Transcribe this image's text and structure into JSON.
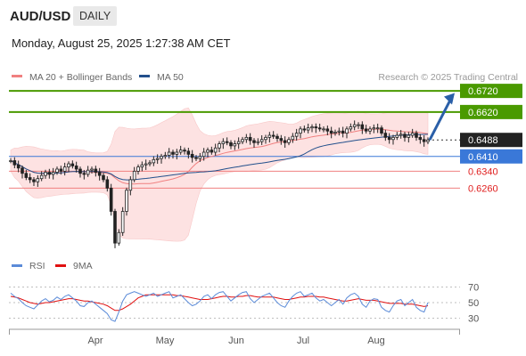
{
  "header": {
    "symbol": "AUD/USD",
    "period": "DAILY"
  },
  "datetime": "Monday, August 25, 2025 1:27:38 AM CET",
  "colors": {
    "green_level": "#4a9a00",
    "red_level": "#f08080",
    "blue_level": "#3a78d8",
    "bollinger_fill": "#fde2e2",
    "ma20": "#f08080",
    "ma50": "#22508c",
    "candle_up": "#222222",
    "candle_down": "#222222",
    "rsi": "#5b8bd8",
    "rsi_ma": "#e01010",
    "arrow": "#2a5fa8",
    "current_price_bg": "#222222"
  },
  "chart_data": [
    {
      "type": "candlestick",
      "legend": [
        {
          "name": "MA 20 + Bollinger Bands",
          "color": "#f08080"
        },
        {
          "name": "MA 50",
          "color": "#22508c"
        }
      ],
      "source": "Research © 2025 Trading Central",
      "x_labels": [
        "Apr",
        "May",
        "Jun",
        "Jul",
        "Aug"
      ],
      "ylim": [
        0.595,
        0.675
      ],
      "current_price": 0.6488,
      "levels": [
        {
          "value": 0.672,
          "label": "0.6720",
          "kind": "resistance"
        },
        {
          "value": 0.662,
          "label": "0.6620",
          "kind": "resistance"
        },
        {
          "value": 0.641,
          "label": "0.6410",
          "kind": "pivot"
        },
        {
          "value": 0.634,
          "label": "0.6340",
          "kind": "support"
        },
        {
          "value": 0.626,
          "label": "0.6260",
          "kind": "support"
        }
      ],
      "forecast_direction": "up",
      "close_series": [
        0.639,
        0.637,
        0.6355,
        0.633,
        0.631,
        0.63,
        0.629,
        0.6305,
        0.632,
        0.6335,
        0.6325,
        0.6335,
        0.635,
        0.634,
        0.636,
        0.6375,
        0.6365,
        0.635,
        0.633,
        0.6325,
        0.6345,
        0.635,
        0.6335,
        0.632,
        0.63,
        0.626,
        0.615,
        0.6,
        0.605,
        0.615,
        0.625,
        0.63,
        0.634,
        0.636,
        0.637,
        0.6375,
        0.638,
        0.6395,
        0.64,
        0.641,
        0.6415,
        0.643,
        0.642,
        0.643,
        0.644,
        0.6435,
        0.642,
        0.6405,
        0.64,
        0.641,
        0.643,
        0.644,
        0.643,
        0.645,
        0.647,
        0.648,
        0.6475,
        0.646,
        0.647,
        0.648,
        0.649,
        0.65,
        0.6485,
        0.6475,
        0.648,
        0.649,
        0.65,
        0.651,
        0.6505,
        0.6495,
        0.6485,
        0.6475,
        0.649,
        0.6505,
        0.652,
        0.654,
        0.6535,
        0.6545,
        0.655,
        0.6545,
        0.654,
        0.654,
        0.653,
        0.652,
        0.6525,
        0.653,
        0.652,
        0.654,
        0.655,
        0.656,
        0.656,
        0.654,
        0.653,
        0.654,
        0.6545,
        0.6545,
        0.652,
        0.65,
        0.649,
        0.65,
        0.651,
        0.6515,
        0.65,
        0.651,
        0.652,
        0.65,
        0.649,
        0.648,
        0.6488
      ]
    },
    {
      "type": "line",
      "legend": [
        {
          "name": "RSI",
          "color": "#5b8bd8"
        },
        {
          "name": "9MA",
          "color": "#e01010"
        }
      ],
      "y_ticks": [
        70,
        50,
        30
      ],
      "ylim": [
        25,
        75
      ],
      "rsi": [
        62,
        58,
        55,
        50,
        46,
        44,
        42,
        47,
        52,
        55,
        51,
        53,
        57,
        54,
        58,
        60,
        56,
        52,
        46,
        45,
        50,
        52,
        48,
        44,
        40,
        36,
        28,
        26,
        38,
        52,
        60,
        62,
        64,
        62,
        60,
        58,
        60,
        62,
        58,
        60,
        62,
        64,
        56,
        58,
        60,
        55,
        50,
        46,
        48,
        52,
        58,
        60,
        55,
        60,
        63,
        64,
        58,
        52,
        56,
        60,
        63,
        64,
        55,
        50,
        54,
        58,
        60,
        62,
        56,
        50,
        46,
        44,
        52,
        58,
        62,
        64,
        58,
        60,
        62,
        56,
        52,
        54,
        50,
        46,
        50,
        54,
        48,
        56,
        60,
        62,
        58,
        48,
        44,
        52,
        55,
        54,
        44,
        40,
        38,
        46,
        52,
        54,
        46,
        50,
        54,
        44,
        40,
        38,
        50
      ],
      "rsi_ma": [
        58,
        57,
        56,
        54,
        52,
        50,
        49,
        48,
        49,
        50,
        50,
        51,
        52,
        53,
        54,
        55,
        55,
        54,
        53,
        52,
        52,
        51,
        50,
        49,
        48,
        46,
        43,
        40,
        40,
        42,
        45,
        48,
        52,
        56,
        58,
        60,
        60,
        60,
        60,
        60,
        60,
        60,
        60,
        59,
        59,
        58,
        57,
        56,
        55,
        54,
        54,
        54,
        55,
        56,
        57,
        58,
        58,
        57,
        57,
        58,
        58,
        59,
        59,
        58,
        57,
        57,
        57,
        57,
        57,
        56,
        55,
        54,
        54,
        55,
        56,
        57,
        57,
        58,
        58,
        58,
        57,
        57,
        56,
        55,
        54,
        53,
        52,
        52,
        53,
        54,
        55,
        54,
        53,
        53,
        53,
        52,
        51,
        50,
        49,
        49,
        49,
        49,
        48,
        48,
        48,
        47,
        46,
        45,
        46
      ]
    }
  ]
}
